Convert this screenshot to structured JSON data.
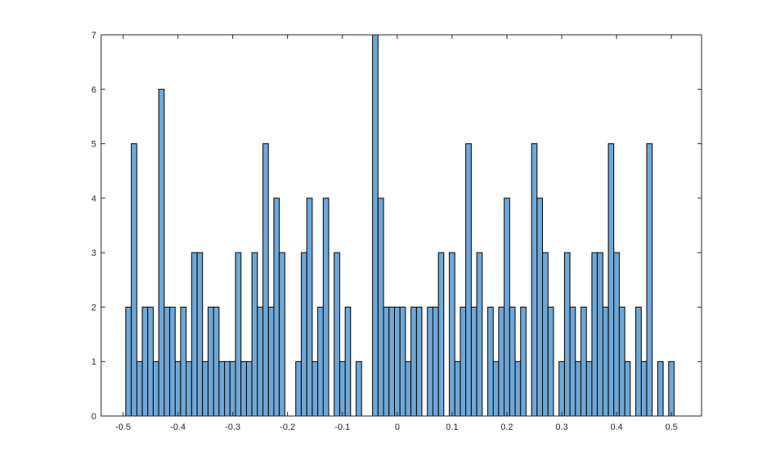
{
  "chart_data": {
    "type": "bar",
    "title": "",
    "xlabel": "",
    "ylabel": "",
    "xlim": [
      -0.54,
      0.555
    ],
    "ylim": [
      0,
      7
    ],
    "bin_width": 0.01,
    "bar_color": "#6fa7d6",
    "edge_color": "#000000",
    "grid": false,
    "box": true,
    "x_ticks": [
      -0.5,
      -0.4,
      -0.3,
      -0.2,
      -0.1,
      0,
      0.1,
      0.2,
      0.3,
      0.4,
      0.5
    ],
    "x_tick_labels": [
      "-0.5",
      "-0.4",
      "-0.3",
      "-0.2",
      "-0.1",
      "0",
      "0.1",
      "0.2",
      "0.3",
      "0.4",
      "0.5"
    ],
    "y_ticks": [
      0,
      1,
      2,
      3,
      4,
      5,
      6,
      7
    ],
    "y_tick_labels": [
      "0",
      "1",
      "2",
      "3",
      "4",
      "5",
      "6",
      "7"
    ],
    "bin_starts": [
      -0.495,
      -0.485,
      -0.475,
      -0.465,
      -0.455,
      -0.445,
      -0.435,
      -0.425,
      -0.415,
      -0.405,
      -0.395,
      -0.385,
      -0.375,
      -0.365,
      -0.355,
      -0.345,
      -0.335,
      -0.325,
      -0.315,
      -0.305,
      -0.295,
      -0.285,
      -0.275,
      -0.265,
      -0.255,
      -0.245,
      -0.235,
      -0.225,
      -0.215,
      -0.205,
      -0.195,
      -0.185,
      -0.175,
      -0.165,
      -0.155,
      -0.145,
      -0.135,
      -0.125,
      -0.115,
      -0.105,
      -0.095,
      -0.085,
      -0.075,
      -0.065,
      -0.055,
      -0.045,
      -0.035,
      -0.025,
      -0.015,
      -0.005,
      0.005,
      0.015,
      0.025,
      0.035,
      0.045,
      0.055,
      0.065,
      0.075,
      0.085,
      0.095,
      0.105,
      0.115,
      0.125,
      0.135,
      0.145,
      0.155,
      0.165,
      0.175,
      0.185,
      0.195,
      0.205,
      0.215,
      0.225,
      0.235,
      0.245,
      0.255,
      0.265,
      0.275,
      0.285,
      0.295,
      0.305,
      0.315,
      0.325,
      0.335,
      0.345,
      0.355,
      0.365,
      0.375,
      0.385,
      0.395,
      0.405,
      0.415,
      0.425,
      0.435,
      0.445,
      0.455,
      0.465,
      0.475,
      0.485,
      0.495
    ],
    "values": [
      2,
      5,
      1,
      2,
      2,
      1,
      6,
      2,
      2,
      1,
      2,
      1,
      3,
      3,
      1,
      2,
      2,
      1,
      1,
      1,
      3,
      1,
      1,
      3,
      2,
      5,
      2,
      4,
      3,
      0,
      0,
      1,
      3,
      4,
      1,
      2,
      4,
      0,
      3,
      1,
      2,
      0,
      1,
      0,
      0,
      7,
      4,
      2,
      2,
      2,
      2,
      1,
      2,
      2,
      0,
      2,
      2,
      3,
      0,
      3,
      1,
      2,
      5,
      2,
      3,
      0,
      2,
      1,
      2,
      4,
      2,
      1,
      2,
      0,
      5,
      4,
      3,
      2,
      0,
      1,
      3,
      2,
      1,
      2,
      1,
      3,
      3,
      2,
      5,
      3,
      2,
      1,
      0,
      2,
      1,
      5,
      0,
      1,
      0,
      1
    ]
  }
}
